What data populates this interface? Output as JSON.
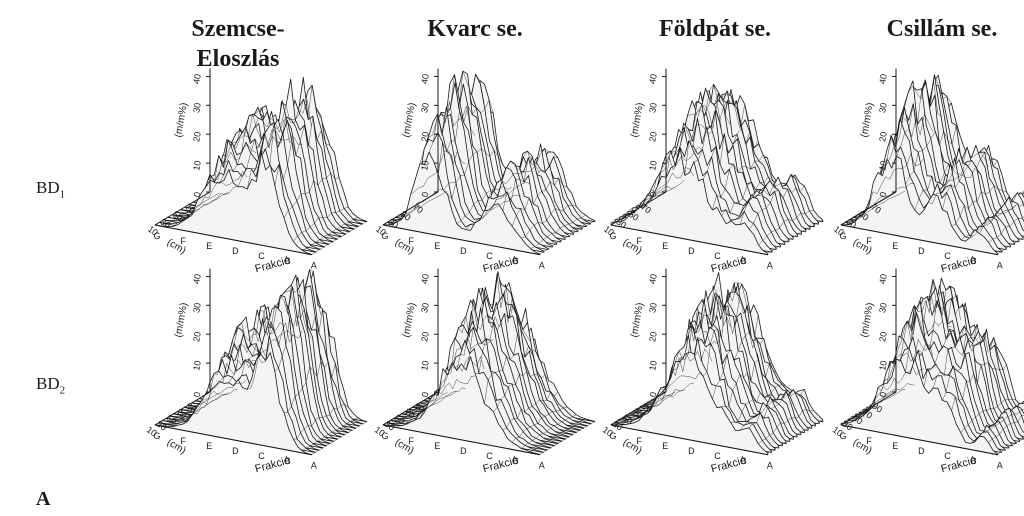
{
  "panel_letter": "A",
  "columns": [
    "Szemcse-\nEloszlás",
    "Kvarc se.",
    "Földpát se.",
    "Csillám se."
  ],
  "rows": [
    {
      "label": "BD",
      "sub": "1"
    },
    {
      "label": "BD",
      "sub": "2"
    }
  ],
  "colors": {
    "ink": "#1a1a1a",
    "mesh_fill": "#f4f4f4",
    "background": "#ffffff"
  },
  "chart_data": {
    "type": "surface3d",
    "zlabel": "(m/m%)",
    "depth_label": "(cm)",
    "fraction_label": "Frakció",
    "z_ticks": [
      0,
      10,
      20,
      30,
      40
    ],
    "zlim": [
      0,
      45
    ],
    "depth_ticks_top_row": [
      "70",
      "50",
      "30",
      "10"
    ],
    "depth_ticks_bottom_row": [
      "90",
      "70",
      "50",
      "30",
      "10"
    ],
    "fraction_ticks": [
      "G",
      "F",
      "E",
      "D",
      "C",
      "B",
      "A"
    ],
    "panels": [
      {
        "row": "BD1",
        "column": "Szemcse-Eloszlás"
      },
      {
        "row": "BD1",
        "column": "Kvarc se."
      },
      {
        "row": "BD1",
        "column": "Földpát se."
      },
      {
        "row": "BD1",
        "column": "Csillám se."
      },
      {
        "row": "BD2",
        "column": "Szemcse-Eloszlás"
      },
      {
        "row": "BD2",
        "column": "Kvarc se."
      },
      {
        "row": "BD2",
        "column": "Földpát se."
      },
      {
        "row": "BD2",
        "column": "Csillám se."
      }
    ]
  }
}
